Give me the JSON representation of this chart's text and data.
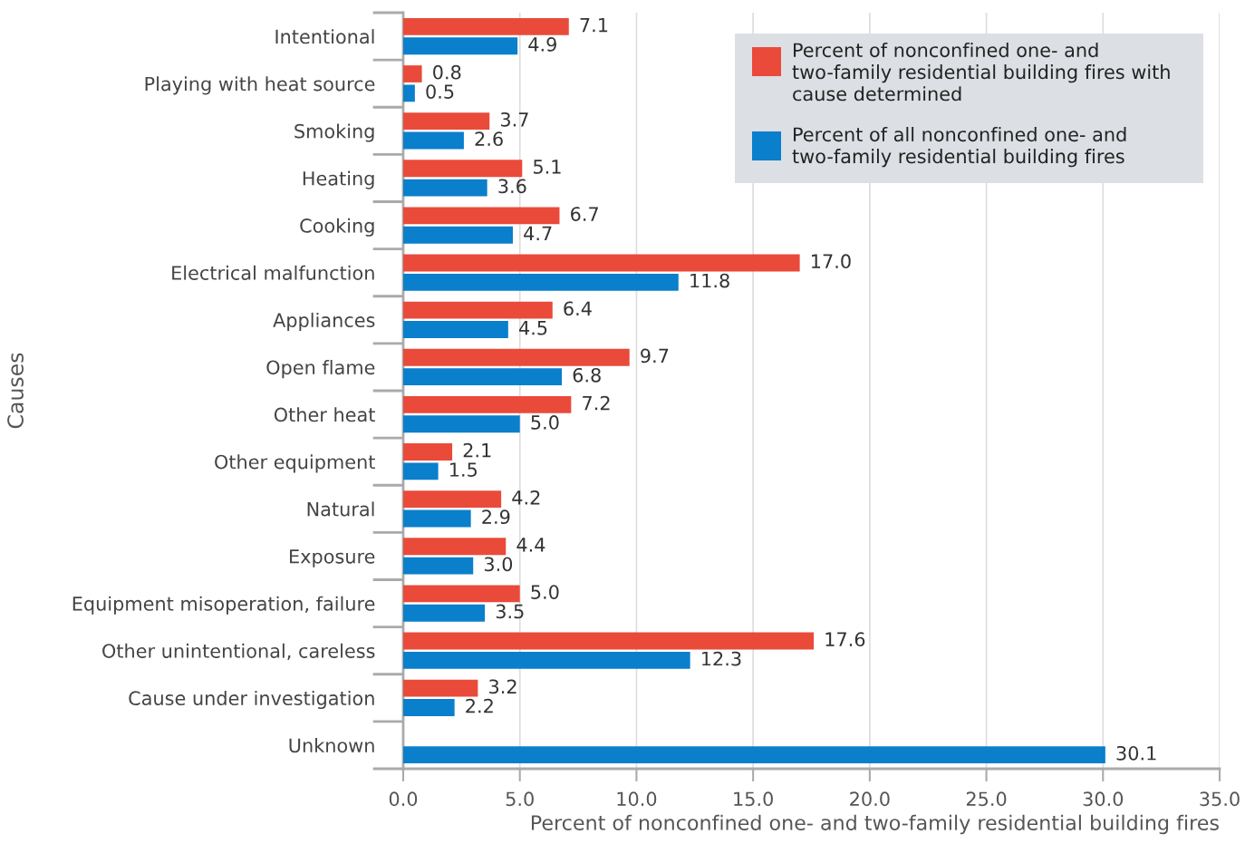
{
  "chart_data": {
    "type": "bar",
    "orientation": "horizontal",
    "xlabel": "Percent of nonconfined one- and two-family residential building fires",
    "ylabel": "Causes",
    "categories": [
      "Intentional",
      "Playing with heat source",
      "Smoking",
      "Heating",
      "Cooking",
      "Electrical malfunction",
      "Appliances",
      "Open flame",
      "Other heat",
      "Other equipment",
      "Natural",
      "Exposure",
      "Equipment misoperation, failure",
      "Other unintentional, careless",
      "Cause under investigation",
      "Unknown"
    ],
    "series": [
      {
        "name": "Percent of nonconfined one- and two-family residential building fires with cause determined",
        "color": "#ea4a3a",
        "values": [
          7.1,
          0.8,
          3.7,
          5.1,
          6.7,
          17.0,
          6.4,
          9.7,
          7.2,
          2.1,
          4.2,
          4.4,
          5.0,
          17.6,
          3.2,
          null
        ],
        "value_labels": [
          "7.1",
          "0.8",
          "3.7",
          "5.1",
          "6.7",
          "17.0",
          "6.4",
          "9.7",
          "7.2",
          "2.1",
          "4.2",
          "4.4",
          "5.0",
          "17.6",
          "3.2",
          null
        ]
      },
      {
        "name": "Percent of all nonconfined one- and two-family residential building fires",
        "color": "#0a7fcb",
        "values": [
          4.9,
          0.5,
          2.6,
          3.6,
          4.7,
          11.8,
          4.5,
          6.8,
          5.0,
          1.5,
          2.9,
          3.0,
          3.5,
          12.3,
          2.2,
          30.1
        ],
        "value_labels": [
          "4.9",
          "0.5",
          "2.6",
          "3.6",
          "4.7",
          "11.8",
          "4.5",
          "6.8",
          "5.0",
          "1.5",
          "2.9",
          "3.0",
          "3.5",
          "12.3",
          "2.2",
          "30.1"
        ]
      }
    ],
    "xlim": [
      0,
      35
    ],
    "xticks": [
      {
        "value": 0,
        "label": "0.0"
      },
      {
        "value": 5,
        "label": "5.0"
      },
      {
        "value": 10,
        "label": "10.0"
      },
      {
        "value": 15,
        "label": "15.0"
      },
      {
        "value": 20,
        "label": "20.0"
      },
      {
        "value": 25,
        "label": "25.0"
      },
      {
        "value": 30,
        "label": "30.0"
      },
      {
        "value": 35,
        "label": "35.0"
      }
    ],
    "grid": "x",
    "legend": "top right"
  }
}
